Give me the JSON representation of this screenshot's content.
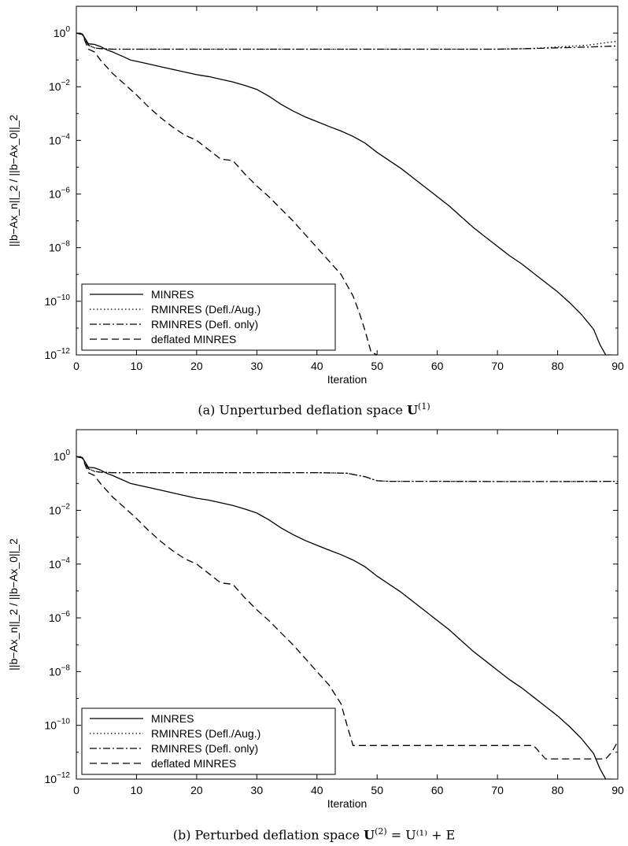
{
  "chart_data": [
    {
      "type": "line",
      "xlabel": "Iteration",
      "ylabel": "||b−Ax_n||_2 / ||b−Ax_0||_2",
      "xlim": [
        0,
        90
      ],
      "ylim_log10": [
        -12,
        1
      ],
      "yscale": "log",
      "xticks": [
        0,
        10,
        20,
        30,
        40,
        50,
        60,
        70,
        80,
        90
      ],
      "yticks_exp": [
        0,
        -2,
        -4,
        -6,
        -8,
        -10,
        -12
      ],
      "legend_position": "bottom-left",
      "caption": {
        "label": "(a)",
        "text": "Unperturbed deflation space",
        "symbol": "U",
        "sup": "(1)",
        "rest": ""
      },
      "series": [
        {
          "name": "MINRES",
          "style": "solid",
          "points": [
            [
              0,
              0
            ],
            [
              1,
              -0.03
            ],
            [
              2,
              -0.4
            ],
            [
              3,
              -0.42
            ],
            [
              4,
              -0.5
            ],
            [
              5,
              -0.62
            ],
            [
              6,
              -0.7
            ],
            [
              7,
              -0.8
            ],
            [
              8,
              -0.9
            ],
            [
              9,
              -1.0
            ],
            [
              10,
              -1.05
            ],
            [
              12,
              -1.15
            ],
            [
              14,
              -1.25
            ],
            [
              16,
              -1.35
            ],
            [
              18,
              -1.45
            ],
            [
              20,
              -1.55
            ],
            [
              22,
              -1.62
            ],
            [
              24,
              -1.72
            ],
            [
              26,
              -1.82
            ],
            [
              28,
              -1.95
            ],
            [
              30,
              -2.1
            ],
            [
              32,
              -2.35
            ],
            [
              34,
              -2.65
            ],
            [
              36,
              -2.9
            ],
            [
              38,
              -3.12
            ],
            [
              40,
              -3.3
            ],
            [
              42,
              -3.48
            ],
            [
              44,
              -3.65
            ],
            [
              46,
              -3.85
            ],
            [
              48,
              -4.1
            ],
            [
              50,
              -4.45
            ],
            [
              52,
              -4.75
            ],
            [
              54,
              -5.05
            ],
            [
              56,
              -5.4
            ],
            [
              58,
              -5.75
            ],
            [
              60,
              -6.1
            ],
            [
              62,
              -6.45
            ],
            [
              64,
              -6.85
            ],
            [
              66,
              -7.25
            ],
            [
              68,
              -7.6
            ],
            [
              70,
              -7.95
            ],
            [
              72,
              -8.3
            ],
            [
              74,
              -8.6
            ],
            [
              76,
              -8.95
            ],
            [
              78,
              -9.3
            ],
            [
              80,
              -9.65
            ],
            [
              82,
              -10.05
            ],
            [
              84,
              -10.5
            ],
            [
              86,
              -11.05
            ],
            [
              87,
              -11.6
            ],
            [
              88,
              -12
            ],
            [
              89,
              -12
            ]
          ]
        },
        {
          "name": "RMINRES (Defl./Aug.)",
          "style": "dotted",
          "points": [
            [
              0,
              0
            ],
            [
              1,
              -0.05
            ],
            [
              2,
              -0.45
            ],
            [
              3,
              -0.55
            ],
            [
              4,
              -0.58
            ],
            [
              6,
              -0.6
            ],
            [
              10,
              -0.6
            ],
            [
              20,
              -0.6
            ],
            [
              30,
              -0.6
            ],
            [
              40,
              -0.6
            ],
            [
              50,
              -0.6
            ],
            [
              60,
              -0.6
            ],
            [
              70,
              -0.6
            ],
            [
              75,
              -0.58
            ],
            [
              80,
              -0.52
            ],
            [
              85,
              -0.45
            ],
            [
              90,
              -0.3
            ]
          ]
        },
        {
          "name": "RMINRES (Defl. only)",
          "style": "dashdot",
          "points": [
            [
              0,
              0
            ],
            [
              1,
              -0.05
            ],
            [
              2,
              -0.45
            ],
            [
              3,
              -0.55
            ],
            [
              4,
              -0.58
            ],
            [
              6,
              -0.6
            ],
            [
              10,
              -0.6
            ],
            [
              20,
              -0.6
            ],
            [
              30,
              -0.6
            ],
            [
              40,
              -0.6
            ],
            [
              50,
              -0.6
            ],
            [
              60,
              -0.6
            ],
            [
              70,
              -0.6
            ],
            [
              75,
              -0.58
            ],
            [
              80,
              -0.55
            ],
            [
              85,
              -0.52
            ],
            [
              90,
              -0.48
            ]
          ]
        },
        {
          "name": "deflated MINRES",
          "style": "dashed",
          "points": [
            [
              0,
              0
            ],
            [
              1,
              -0.05
            ],
            [
              2,
              -0.6
            ],
            [
              3,
              -0.7
            ],
            [
              4,
              -1.0
            ],
            [
              6,
              -1.5
            ],
            [
              8,
              -1.9
            ],
            [
              10,
              -2.3
            ],
            [
              12,
              -2.75
            ],
            [
              14,
              -3.15
            ],
            [
              16,
              -3.5
            ],
            [
              18,
              -3.8
            ],
            [
              20,
              -4.0
            ],
            [
              22,
              -4.35
            ],
            [
              24,
              -4.7
            ],
            [
              26,
              -4.75
            ],
            [
              28,
              -5.25
            ],
            [
              30,
              -5.7
            ],
            [
              32,
              -6.1
            ],
            [
              34,
              -6.55
            ],
            [
              36,
              -7.0
            ],
            [
              38,
              -7.5
            ],
            [
              40,
              -8.0
            ],
            [
              42,
              -8.5
            ],
            [
              44,
              -9.0
            ],
            [
              46,
              -9.8
            ],
            [
              47,
              -10.4
            ],
            [
              48,
              -11.1
            ],
            [
              49,
              -11.9
            ],
            [
              50,
              -12
            ]
          ]
        }
      ]
    },
    {
      "type": "line",
      "xlabel": "Iteration",
      "ylabel": "||b−Ax_n||_2 / ||b−Ax_0||_2",
      "xlim": [
        0,
        90
      ],
      "ylim_log10": [
        -12,
        1
      ],
      "yscale": "log",
      "xticks": [
        0,
        10,
        20,
        30,
        40,
        50,
        60,
        70,
        80,
        90
      ],
      "yticks_exp": [
        0,
        -2,
        -4,
        -6,
        -8,
        -10,
        -12
      ],
      "legend_position": "bottom-left",
      "caption": {
        "label": "(b)",
        "text": "Perturbed deflation space",
        "symbol": "U",
        "sup": "(2)",
        "rest": " = U⁽¹⁾ + E"
      },
      "series": [
        {
          "name": "MINRES",
          "style": "solid",
          "points": [
            [
              0,
              0
            ],
            [
              1,
              -0.03
            ],
            [
              2,
              -0.4
            ],
            [
              3,
              -0.42
            ],
            [
              4,
              -0.5
            ],
            [
              5,
              -0.62
            ],
            [
              6,
              -0.7
            ],
            [
              7,
              -0.8
            ],
            [
              8,
              -0.9
            ],
            [
              9,
              -1.0
            ],
            [
              10,
              -1.05
            ],
            [
              12,
              -1.15
            ],
            [
              14,
              -1.25
            ],
            [
              16,
              -1.35
            ],
            [
              18,
              -1.45
            ],
            [
              20,
              -1.55
            ],
            [
              22,
              -1.62
            ],
            [
              24,
              -1.72
            ],
            [
              26,
              -1.82
            ],
            [
              28,
              -1.95
            ],
            [
              30,
              -2.1
            ],
            [
              32,
              -2.35
            ],
            [
              34,
              -2.65
            ],
            [
              36,
              -2.9
            ],
            [
              38,
              -3.12
            ],
            [
              40,
              -3.3
            ],
            [
              42,
              -3.48
            ],
            [
              44,
              -3.65
            ],
            [
              46,
              -3.85
            ],
            [
              48,
              -4.1
            ],
            [
              50,
              -4.45
            ],
            [
              52,
              -4.75
            ],
            [
              54,
              -5.05
            ],
            [
              56,
              -5.4
            ],
            [
              58,
              -5.75
            ],
            [
              60,
              -6.1
            ],
            [
              62,
              -6.45
            ],
            [
              64,
              -6.85
            ],
            [
              66,
              -7.25
            ],
            [
              68,
              -7.6
            ],
            [
              70,
              -7.95
            ],
            [
              72,
              -8.3
            ],
            [
              74,
              -8.6
            ],
            [
              76,
              -8.95
            ],
            [
              78,
              -9.3
            ],
            [
              80,
              -9.65
            ],
            [
              82,
              -10.05
            ],
            [
              84,
              -10.5
            ],
            [
              86,
              -11.05
            ],
            [
              87,
              -11.6
            ],
            [
              88,
              -12
            ],
            [
              89,
              -12
            ]
          ]
        },
        {
          "name": "RMINRES (Defl./Aug.)",
          "style": "dotted",
          "points": [
            [
              0,
              0
            ],
            [
              1,
              -0.05
            ],
            [
              2,
              -0.45
            ],
            [
              3,
              -0.55
            ],
            [
              4,
              -0.58
            ],
            [
              6,
              -0.6
            ],
            [
              10,
              -0.6
            ],
            [
              20,
              -0.6
            ],
            [
              30,
              -0.6
            ],
            [
              40,
              -0.6
            ],
            [
              45,
              -0.62
            ],
            [
              48,
              -0.75
            ],
            [
              50,
              -0.9
            ],
            [
              52,
              -0.92
            ],
            [
              60,
              -0.92
            ],
            [
              70,
              -0.93
            ],
            [
              80,
              -0.93
            ],
            [
              90,
              -0.92
            ]
          ]
        },
        {
          "name": "RMINRES (Defl. only)",
          "style": "dashdot",
          "points": [
            [
              0,
              0
            ],
            [
              1,
              -0.05
            ],
            [
              2,
              -0.45
            ],
            [
              3,
              -0.55
            ],
            [
              4,
              -0.58
            ],
            [
              6,
              -0.6
            ],
            [
              10,
              -0.6
            ],
            [
              20,
              -0.6
            ],
            [
              30,
              -0.6
            ],
            [
              40,
              -0.6
            ],
            [
              45,
              -0.62
            ],
            [
              48,
              -0.75
            ],
            [
              50,
              -0.9
            ],
            [
              52,
              -0.92
            ],
            [
              60,
              -0.92
            ],
            [
              70,
              -0.93
            ],
            [
              80,
              -0.93
            ],
            [
              90,
              -0.92
            ]
          ]
        },
        {
          "name": "deflated MINRES",
          "style": "dashed",
          "points": [
            [
              0,
              0
            ],
            [
              1,
              -0.05
            ],
            [
              2,
              -0.6
            ],
            [
              3,
              -0.7
            ],
            [
              4,
              -1.0
            ],
            [
              6,
              -1.5
            ],
            [
              8,
              -1.9
            ],
            [
              10,
              -2.3
            ],
            [
              12,
              -2.75
            ],
            [
              14,
              -3.15
            ],
            [
              16,
              -3.5
            ],
            [
              18,
              -3.8
            ],
            [
              20,
              -4.0
            ],
            [
              22,
              -4.35
            ],
            [
              24,
              -4.7
            ],
            [
              26,
              -4.75
            ],
            [
              28,
              -5.25
            ],
            [
              30,
              -5.7
            ],
            [
              32,
              -6.1
            ],
            [
              34,
              -6.55
            ],
            [
              36,
              -7.0
            ],
            [
              38,
              -7.5
            ],
            [
              40,
              -8.0
            ],
            [
              42,
              -8.5
            ],
            [
              44,
              -9.2
            ],
            [
              45,
              -10.0
            ],
            [
              46,
              -10.75
            ],
            [
              50,
              -10.75
            ],
            [
              60,
              -10.75
            ],
            [
              70,
              -10.75
            ],
            [
              76,
              -10.75
            ],
            [
              78,
              -11.25
            ],
            [
              80,
              -11.25
            ],
            [
              88,
              -11.25
            ],
            [
              89,
              -11.0
            ],
            [
              90,
              -10.6
            ]
          ]
        }
      ]
    }
  ]
}
